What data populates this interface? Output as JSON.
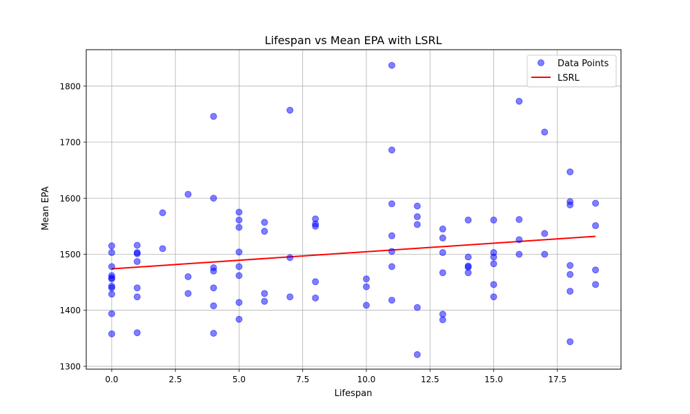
{
  "chart_data": {
    "type": "scatter",
    "title": "Lifespan vs Mean EPA with LSRL",
    "xlabel": "Lifespan",
    "ylabel": "Mean EPA",
    "xlim": [
      -1.0,
      20.0
    ],
    "ylim": [
      1295,
      1865
    ],
    "x_ticks": [
      0.0,
      2.5,
      5.0,
      7.5,
      10.0,
      12.5,
      15.0,
      17.5
    ],
    "x_tick_labels": [
      "0.0",
      "2.5",
      "5.0",
      "7.5",
      "10.0",
      "12.5",
      "15.0",
      "17.5"
    ],
    "y_ticks": [
      1300,
      1400,
      1500,
      1600,
      1700,
      1800
    ],
    "y_tick_labels": [
      "1300",
      "1400",
      "1500",
      "1600",
      "1700",
      "1800"
    ],
    "grid": true,
    "legend": {
      "placement": "top-right",
      "entries": [
        {
          "label": "Data Points",
          "marker": "circle",
          "color": "#0000ff"
        },
        {
          "label": "LSRL",
          "marker": "line",
          "color": "#ff0000"
        }
      ]
    },
    "series": [
      {
        "name": "Data Points",
        "kind": "scatter",
        "color": "#0000ff",
        "opacity": 0.5,
        "points": [
          {
            "x": 0,
            "y": 1515
          },
          {
            "x": 0,
            "y": 1503
          },
          {
            "x": 0,
            "y": 1478
          },
          {
            "x": 0,
            "y": 1462
          },
          {
            "x": 0,
            "y": 1458
          },
          {
            "x": 0,
            "y": 1456
          },
          {
            "x": 0,
            "y": 1443
          },
          {
            "x": 0,
            "y": 1440
          },
          {
            "x": 0,
            "y": 1429
          },
          {
            "x": 0,
            "y": 1394
          },
          {
            "x": 0,
            "y": 1358
          },
          {
            "x": 1,
            "y": 1516
          },
          {
            "x": 1,
            "y": 1503
          },
          {
            "x": 1,
            "y": 1501
          },
          {
            "x": 1,
            "y": 1487
          },
          {
            "x": 1,
            "y": 1440
          },
          {
            "x": 1,
            "y": 1424
          },
          {
            "x": 1,
            "y": 1360
          },
          {
            "x": 2,
            "y": 1574
          },
          {
            "x": 2,
            "y": 1510
          },
          {
            "x": 3,
            "y": 1607
          },
          {
            "x": 3,
            "y": 1460
          },
          {
            "x": 3,
            "y": 1430
          },
          {
            "x": 4,
            "y": 1746
          },
          {
            "x": 4,
            "y": 1600
          },
          {
            "x": 4,
            "y": 1476
          },
          {
            "x": 4,
            "y": 1470
          },
          {
            "x": 4,
            "y": 1440
          },
          {
            "x": 4,
            "y": 1408
          },
          {
            "x": 4,
            "y": 1359
          },
          {
            "x": 5,
            "y": 1575
          },
          {
            "x": 5,
            "y": 1561
          },
          {
            "x": 5,
            "y": 1548
          },
          {
            "x": 5,
            "y": 1504
          },
          {
            "x": 5,
            "y": 1478
          },
          {
            "x": 5,
            "y": 1462
          },
          {
            "x": 5,
            "y": 1414
          },
          {
            "x": 5,
            "y": 1384
          },
          {
            "x": 6,
            "y": 1557
          },
          {
            "x": 6,
            "y": 1541
          },
          {
            "x": 6,
            "y": 1430
          },
          {
            "x": 6,
            "y": 1416
          },
          {
            "x": 7,
            "y": 1757
          },
          {
            "x": 7,
            "y": 1494
          },
          {
            "x": 7,
            "y": 1424
          },
          {
            "x": 8,
            "y": 1563
          },
          {
            "x": 8,
            "y": 1554
          },
          {
            "x": 8,
            "y": 1550
          },
          {
            "x": 8,
            "y": 1451
          },
          {
            "x": 8,
            "y": 1422
          },
          {
            "x": 10,
            "y": 1456
          },
          {
            "x": 10,
            "y": 1442
          },
          {
            "x": 10,
            "y": 1409
          },
          {
            "x": 11,
            "y": 1837
          },
          {
            "x": 11,
            "y": 1686
          },
          {
            "x": 11,
            "y": 1590
          },
          {
            "x": 11,
            "y": 1533
          },
          {
            "x": 11,
            "y": 1505
          },
          {
            "x": 11,
            "y": 1478
          },
          {
            "x": 11,
            "y": 1418
          },
          {
            "x": 12,
            "y": 1586
          },
          {
            "x": 12,
            "y": 1567
          },
          {
            "x": 12,
            "y": 1553
          },
          {
            "x": 12,
            "y": 1405
          },
          {
            "x": 12,
            "y": 1321
          },
          {
            "x": 13,
            "y": 1545
          },
          {
            "x": 13,
            "y": 1529
          },
          {
            "x": 13,
            "y": 1503
          },
          {
            "x": 13,
            "y": 1467
          },
          {
            "x": 13,
            "y": 1393
          },
          {
            "x": 13,
            "y": 1383
          },
          {
            "x": 14,
            "y": 1561
          },
          {
            "x": 14,
            "y": 1495
          },
          {
            "x": 14,
            "y": 1479
          },
          {
            "x": 14,
            "y": 1477
          },
          {
            "x": 14,
            "y": 1467
          },
          {
            "x": 15,
            "y": 1561
          },
          {
            "x": 15,
            "y": 1503
          },
          {
            "x": 15,
            "y": 1495
          },
          {
            "x": 15,
            "y": 1483
          },
          {
            "x": 15,
            "y": 1446
          },
          {
            "x": 15,
            "y": 1424
          },
          {
            "x": 16,
            "y": 1773
          },
          {
            "x": 16,
            "y": 1562
          },
          {
            "x": 16,
            "y": 1526
          },
          {
            "x": 16,
            "y": 1500
          },
          {
            "x": 17,
            "y": 1718
          },
          {
            "x": 17,
            "y": 1537
          },
          {
            "x": 17,
            "y": 1500
          },
          {
            "x": 18,
            "y": 1647
          },
          {
            "x": 18,
            "y": 1594
          },
          {
            "x": 18,
            "y": 1588
          },
          {
            "x": 18,
            "y": 1480
          },
          {
            "x": 18,
            "y": 1464
          },
          {
            "x": 18,
            "y": 1434
          },
          {
            "x": 18,
            "y": 1344
          },
          {
            "x": 19,
            "y": 1591
          },
          {
            "x": 19,
            "y": 1551
          },
          {
            "x": 19,
            "y": 1472
          },
          {
            "x": 19,
            "y": 1446
          }
        ]
      },
      {
        "name": "LSRL",
        "kind": "line",
        "color": "#ff0000",
        "points": [
          {
            "x": 0,
            "y": 1474
          },
          {
            "x": 19,
            "y": 1532
          }
        ]
      }
    ]
  }
}
